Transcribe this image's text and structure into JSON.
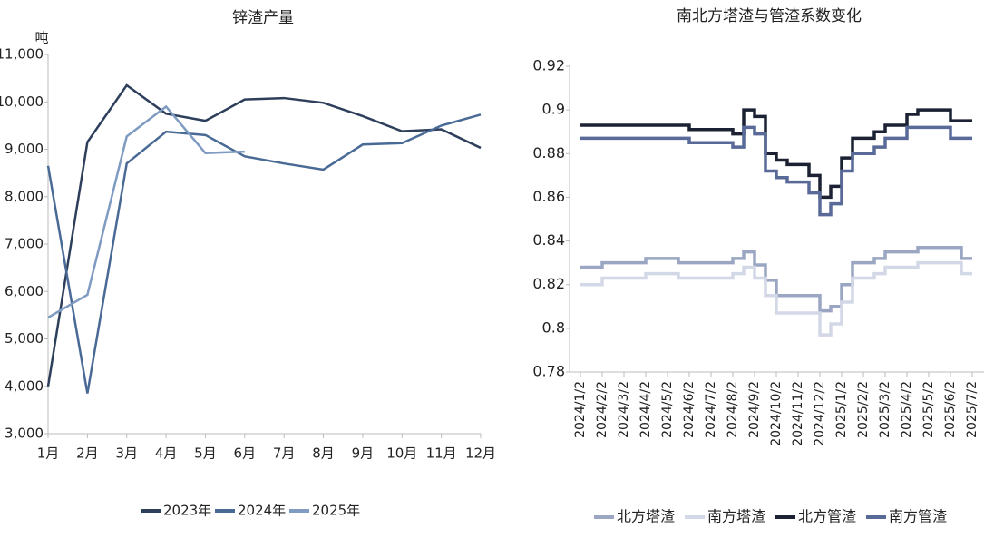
{
  "chart_data": [
    {
      "type": "line",
      "title": "锌渣产量",
      "y_label": "吨",
      "categories": [
        "1月",
        "2月",
        "3月",
        "4月",
        "5月",
        "6月",
        "7月",
        "8月",
        "9月",
        "10月",
        "11月",
        "12月"
      ],
      "series": [
        {
          "name": "2023年",
          "color": "#2e3f5c",
          "values": [
            4000,
            9150,
            10350,
            9750,
            9600,
            10050,
            10080,
            9980,
            9700,
            9380,
            9420,
            9030
          ]
        },
        {
          "name": "2024年",
          "color": "#4a6a96",
          "values": [
            8650,
            3850,
            8700,
            9370,
            9300,
            8850,
            8700,
            8570,
            9100,
            9130,
            9500,
            9730
          ]
        },
        {
          "name": "2025年",
          "color": "#7f9bc2",
          "values": [
            5450,
            5930,
            9270,
            9900,
            8920,
            8950,
            null,
            null,
            null,
            null,
            null,
            null
          ]
        }
      ],
      "ylim": [
        3000,
        11000
      ],
      "yticks": [
        {
          "value": 3000,
          "label": "3,000"
        },
        {
          "value": 4000,
          "label": "4,000"
        },
        {
          "value": 5000,
          "label": "5,000"
        },
        {
          "value": 6000,
          "label": "6,000"
        },
        {
          "value": 7000,
          "label": "7,000"
        },
        {
          "value": 8000,
          "label": "8,000"
        },
        {
          "value": 9000,
          "label": "9,000"
        },
        {
          "value": 10000,
          "label": "10,000"
        },
        {
          "value": 11000,
          "label": "11,000"
        }
      ],
      "grid": false,
      "step": false,
      "legend": "bottom"
    },
    {
      "type": "line",
      "title": "南北方塔渣与管渣系数变化",
      "categories": [
        "2024/1/2",
        null,
        "2024/2/2",
        null,
        "2024/3/2",
        null,
        "2024/4/2",
        null,
        "2024/5/2",
        null,
        "2024/6/2",
        null,
        "2024/7/2",
        null,
        "2024/8/2",
        null,
        "2024/9/2",
        null,
        "2024/10/2",
        null,
        "2024/11/2",
        null,
        "2024/12/2",
        null,
        "2025/1/2",
        null,
        "2025/2/2",
        null,
        "2025/3/2",
        null,
        "2025/4/2",
        null,
        "2025/5/2",
        null,
        "2025/6/2",
        null,
        "2025/7/2"
      ],
      "series": [
        {
          "name": "北方塔渣",
          "color": "#9aa6c2",
          "values": [
            0.828,
            0.828,
            0.83,
            0.83,
            0.83,
            0.83,
            0.832,
            0.832,
            0.832,
            0.83,
            0.83,
            0.83,
            0.83,
            0.83,
            0.832,
            0.835,
            0.829,
            0.822,
            0.815,
            0.815,
            0.815,
            0.815,
            0.808,
            0.81,
            0.82,
            0.83,
            0.83,
            0.832,
            0.835,
            0.835,
            0.835,
            0.837,
            0.837,
            0.837,
            0.837,
            0.832,
            0.832
          ]
        },
        {
          "name": "南方塔渣",
          "color": "#d3d8e6",
          "values": [
            0.82,
            0.82,
            0.823,
            0.823,
            0.823,
            0.823,
            0.825,
            0.825,
            0.825,
            0.823,
            0.823,
            0.823,
            0.823,
            0.823,
            0.825,
            0.828,
            0.823,
            0.815,
            0.807,
            0.807,
            0.807,
            0.807,
            0.797,
            0.802,
            0.812,
            0.823,
            0.823,
            0.825,
            0.828,
            0.828,
            0.828,
            0.83,
            0.83,
            0.83,
            0.83,
            0.825,
            0.825
          ]
        },
        {
          "name": "北方管渣",
          "color": "#1c2233",
          "values": [
            0.893,
            0.893,
            0.893,
            0.893,
            0.893,
            0.893,
            0.893,
            0.893,
            0.893,
            0.893,
            0.891,
            0.891,
            0.891,
            0.891,
            0.889,
            0.9,
            0.897,
            0.88,
            0.877,
            0.875,
            0.875,
            0.87,
            0.86,
            0.865,
            0.878,
            0.887,
            0.887,
            0.89,
            0.893,
            0.893,
            0.898,
            0.9,
            0.9,
            0.9,
            0.895,
            0.895,
            0.895
          ]
        },
        {
          "name": "南方管渣",
          "color": "#5a6a98",
          "values": [
            0.887,
            0.887,
            0.887,
            0.887,
            0.887,
            0.887,
            0.887,
            0.887,
            0.887,
            0.887,
            0.885,
            0.885,
            0.885,
            0.885,
            0.883,
            0.892,
            0.889,
            0.872,
            0.869,
            0.867,
            0.867,
            0.862,
            0.852,
            0.857,
            0.872,
            0.88,
            0.88,
            0.883,
            0.887,
            0.887,
            0.892,
            0.892,
            0.892,
            0.892,
            0.887,
            0.887,
            0.887
          ]
        }
      ],
      "ylim": [
        0.78,
        0.92
      ],
      "yticks": [
        0.78,
        0.8,
        0.82,
        0.84,
        0.86,
        0.88,
        0.9,
        0.92
      ],
      "grid": false,
      "step": true,
      "legend": "bottom"
    }
  ]
}
